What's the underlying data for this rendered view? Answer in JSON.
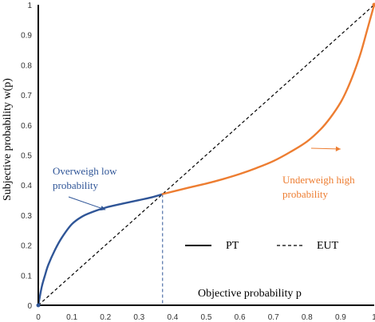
{
  "chart_data": {
    "type": "line",
    "x_label": "Objective probability p",
    "y_label": "Subjective probability w(p)",
    "xlim": [
      0,
      1
    ],
    "ylim": [
      0,
      1
    ],
    "x_ticks": [
      "0",
      "0.1",
      "0.2",
      "0.3",
      "0.4",
      "0.5",
      "0.6",
      "0.7",
      "0.8",
      "0.9",
      "1"
    ],
    "y_ticks": [
      "0",
      "0.1",
      "0.2",
      "0.3",
      "0.4",
      "0.5",
      "0.6",
      "0.7",
      "0.8",
      "0.9",
      "1"
    ],
    "legend_position": "center-right",
    "crossover": {
      "x": 0.37,
      "y": 0.37
    },
    "series": [
      {
        "name": "PT",
        "style": "solid",
        "segments": [
          {
            "color": "#2f5597",
            "x": [
              0,
              0.01,
              0.02,
              0.03,
              0.05,
              0.07,
              0.1,
              0.13,
              0.16,
              0.2,
              0.25,
              0.3,
              0.34,
              0.37
            ],
            "y": [
              0,
              0.06,
              0.1,
              0.135,
              0.185,
              0.225,
              0.27,
              0.295,
              0.31,
              0.325,
              0.338,
              0.35,
              0.36,
              0.37
            ]
          },
          {
            "color": "#ed7d31",
            "x": [
              0.37,
              0.45,
              0.5,
              0.55,
              0.6,
              0.65,
              0.7,
              0.75,
              0.8,
              0.84,
              0.87,
              0.9,
              0.92,
              0.94,
              0.96,
              0.98,
              1.0
            ],
            "y": [
              0.37,
              0.392,
              0.405,
              0.42,
              0.437,
              0.457,
              0.48,
              0.51,
              0.545,
              0.585,
              0.625,
              0.675,
              0.72,
              0.775,
              0.84,
              0.92,
              1.0
            ]
          }
        ]
      },
      {
        "name": "EUT",
        "style": "dashed",
        "color": "#000000",
        "x": [
          0,
          1
        ],
        "y": [
          0,
          1
        ]
      }
    ],
    "annotations": [
      {
        "lines": [
          "Overweigh low",
          "probability"
        ],
        "color": "#2f5597",
        "arrow_to": {
          "x": 0.2,
          "y": 0.318
        }
      },
      {
        "lines": [
          "Underweigh high",
          "probability"
        ],
        "color": "#ed7d31",
        "arrow_to": {
          "x": 0.9,
          "y": 0.52
        }
      }
    ],
    "grid": false
  },
  "colors": {
    "axis": "#000000",
    "pt_low": "#2f5597",
    "pt_high": "#ed7d31",
    "eut": "#000000",
    "tick_text": "#333333"
  }
}
